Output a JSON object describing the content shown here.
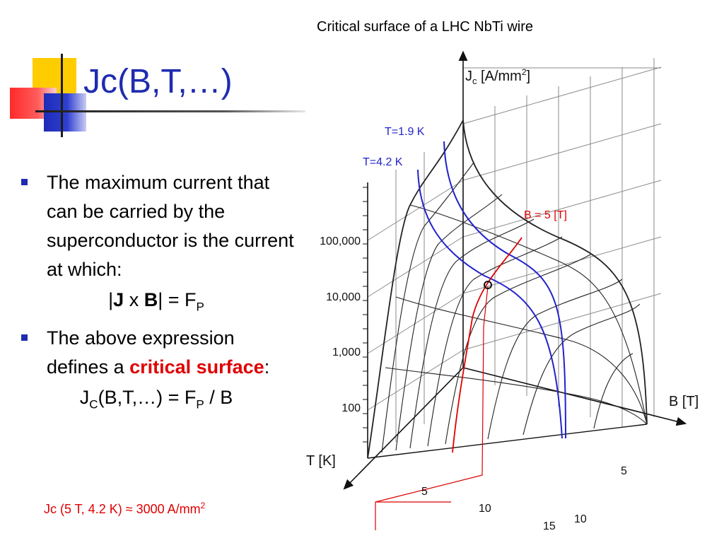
{
  "slide": {
    "title": "Jc(B,T,…)",
    "bullet1": "The maximum current that can be carried by the superconductor is the current at which:",
    "eq1": {
      "bar_left": "|",
      "J": "J",
      "x": " x ",
      "B": "B",
      "bar_right": "| = F",
      "sub": "P"
    },
    "bullet2_pre": "The above expression defines a ",
    "bullet2_red": "critical surface",
    "bullet2_post": ":",
    "eq2": {
      "J": "J",
      "sub_c": "C",
      "args": "(B,T,…) = F",
      "sub_p": "P",
      "tail": " / B"
    },
    "note": {
      "text": "Jc (5 T, 4.2 K) ≈ 3000 A/mm",
      "sup": "2"
    }
  },
  "chart_data": {
    "type": "surface-3d",
    "title": "Critical surface of a LHC NbTi wire",
    "axes": {
      "z_label": "J",
      "z_label_sub": "c",
      "z_label_rest": " [A/mm",
      "z_label_sup": "2",
      "z_label_end": "]",
      "b_label": "B [T]",
      "t_label": "T [K]"
    },
    "z_ticks": [
      "100,000",
      "10,000",
      "1,000",
      "100"
    ],
    "b_ticks": [
      "5",
      "10"
    ],
    "t_ticks": [
      "5",
      "10",
      "15"
    ],
    "annotations": {
      "t19": "T=1.9 K",
      "t42": "T=4.2 K",
      "b5": "B = 5 [T]"
    },
    "colors": {
      "isotherm": "#2222cc",
      "isofield": "#dd0000",
      "mesh": "#222222"
    }
  }
}
